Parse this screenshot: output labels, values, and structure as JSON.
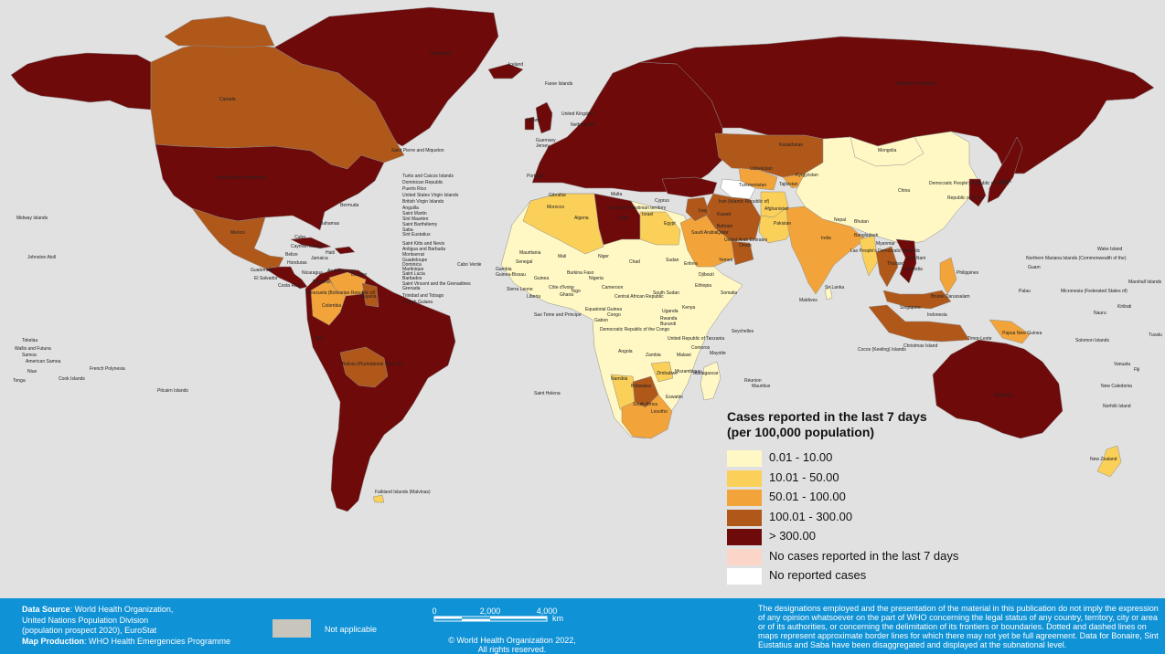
{
  "legend": {
    "title_line1": "Cases reported in the last 7 days",
    "title_line2": "(per 100,000 population)",
    "items": [
      {
        "label": "0.01 - 10.00",
        "color": "#fff8c4"
      },
      {
        "label": "10.01 - 50.00",
        "color": "#fbd059"
      },
      {
        "label": "50.01 - 100.00",
        "color": "#f2a43a"
      },
      {
        "label": "100.01 - 300.00",
        "color": "#b0571a"
      },
      {
        "label": "> 300.00",
        "color": "#6e0a0a"
      },
      {
        "label": "No cases reported in the last 7 days",
        "color": "#fbd5c8"
      },
      {
        "label": "No reported cases",
        "color": "#ffffff"
      }
    ]
  },
  "colors": {
    "ocean": "#e1e1e1",
    "not_applicable": "#c8c5bd",
    "footer": "#0f92d6"
  },
  "footer": {
    "data_source_label": "Data Source",
    "data_source_text": ": World Health Organization,",
    "source_line2": "United Nations Population Division",
    "source_line3": "(population prospect 2020), EuroStat",
    "map_production_label": "Map Production",
    "map_production_text": ": WHO Health Emergencies Programme",
    "not_applicable": "Not applicable",
    "scale_ticks": [
      "0",
      "2,000",
      "4,000"
    ],
    "scale_unit": "km",
    "copyright_line1": "© World Health Organization  2022,",
    "copyright_line2": "All rights reserved.",
    "disclaimer": "The designations employed and the presentation of the material in this publication do not imply the expression of any opinion whatsoever on the part of WHO concerning the legal status of any country, territory, city or area or of its authorities, or concerning the delimitation of its frontiers or boundaries. Dotted and dashed lines on maps represent approximate border lines for which there may not yet be full agreement. Data for Bonaire, Sint Eustatius and Saba have been disaggregated and displayed at the subnational level."
  },
  "map_labels": [
    "Greenland",
    "Iceland",
    "Canada",
    "Saint Pierre and Miquelon",
    "United States of America",
    "Bermuda",
    "Bahamas",
    "Midway Islands",
    "Johnston Atoll",
    "Mexico",
    "Cuba",
    "Cayman Islands",
    "Belize",
    "Honduras",
    "Haiti",
    "Jamaica",
    "Guatemala",
    "El Salvador",
    "Nicaragua",
    "Costa Rica",
    "Panama",
    "Aruba",
    "Curaçao",
    "Bonaire",
    "Turks and Caicos Islands",
    "Dominican Republic",
    "Puerto Rico",
    "United States Virgin Islands",
    "British Virgin Islands",
    "Anguilla",
    "Saint Martin",
    "Sint Maarten",
    "Saint Barthélemy",
    "Saba",
    "Sint Eustatius",
    "Saint Kitts and Nevis",
    "Antigua and Barbuda",
    "Montserrat",
    "Guadeloupe",
    "Dominica",
    "Martinique",
    "Saint Lucia",
    "Barbados",
    "Saint Vincent and the Grenadines",
    "Grenada",
    "Trinidad and Tobago",
    "French Guiana",
    "Venezuela (Bolivarian Republic of)",
    "Guyana",
    "Colombia",
    "Peru",
    "Bolivia (Plurinational State of)",
    "Falkland Islands (Malvinas)",
    "Tokelau",
    "Wallis and Futuna",
    "Samoa",
    "American Samoa",
    "Niue",
    "Tonga",
    "Cook Islands",
    "French Polynesia",
    "Pitcairn Islands",
    "Faroe Islands",
    "United Kingdom",
    "Ireland",
    "Netherlands",
    "Guernsey",
    "Jersey",
    "Portugal",
    "Gibraltar",
    "Malta",
    "Morocco",
    "Algeria",
    "Libya",
    "Egypt",
    "Cyprus",
    "occupied Palestinian territory",
    "Israel",
    "Iraq",
    "Kuwait",
    "Bahrain",
    "Qatar",
    "Saudi Arabia",
    "United Arab Emirates",
    "Oman",
    "Yemen",
    "Iran (Islamic Republic of)",
    "Turkmenistan",
    "Uzbekistan",
    "Tajikistan",
    "Kyrgyzstan",
    "Kazakhstan",
    "Russian Federation",
    "Afghanistan",
    "Pakistan",
    "India",
    "Nepal",
    "Bhutan",
    "Bangladesh",
    "Myanmar",
    "Sri Lanka",
    "Maldives",
    "China",
    "Mongolia",
    "Democratic People's Republic of Korea",
    "Republic of Korea",
    "Japan",
    "Lao People's Democratic Republic",
    "Thailand",
    "Viet Nam",
    "Cambodia",
    "Philippines",
    "Brunei Darussalam",
    "Singapore",
    "Indonesia",
    "Timor-Leste",
    "Papua New Guinea",
    "Solomon Islands",
    "Christmas Island",
    "Cocos (Keeling) Islands",
    "Australia",
    "New Zealand",
    "New Caledonia",
    "Vanuatu",
    "Fiji",
    "Norfolk Island",
    "Tuvalu",
    "Kiribati",
    "Nauru",
    "Marshall Islands",
    "Micronesia (Federated States of)",
    "Palau",
    "Guam",
    "Northern Mariana Islands (Commonwealth of the)",
    "Wake Island",
    "Mauritania",
    "Mali",
    "Niger",
    "Chad",
    "Sudan",
    "Eritrea",
    "Djibouti",
    "Ethiopia",
    "Somalia",
    "Senegal",
    "Gambia",
    "Guinea-Bissau",
    "Guinea",
    "Sierra Leone",
    "Liberia",
    "Côte d'Ivoire",
    "Burkina Faso",
    "Ghana",
    "Togo",
    "Nigeria",
    "Cameroon",
    "Central African Republic",
    "South Sudan",
    "Uganda",
    "Kenya",
    "Rwanda",
    "Burundi",
    "Gabon",
    "Congo",
    "Equatorial Guinea",
    "Sao Tome and Principe",
    "Democratic Republic of the Congo",
    "United Republic of Tanzania",
    "Angola",
    "Zambia",
    "Malawi",
    "Mozambique",
    "Zimbabwe",
    "Namibia",
    "Botswana",
    "South Africa",
    "Eswatini",
    "Lesotho",
    "Madagascar",
    "Comoros",
    "Mayotte",
    "Seychelles",
    "Réunion",
    "Mauritius",
    "Saint Helena",
    "Cabo Verde"
  ]
}
